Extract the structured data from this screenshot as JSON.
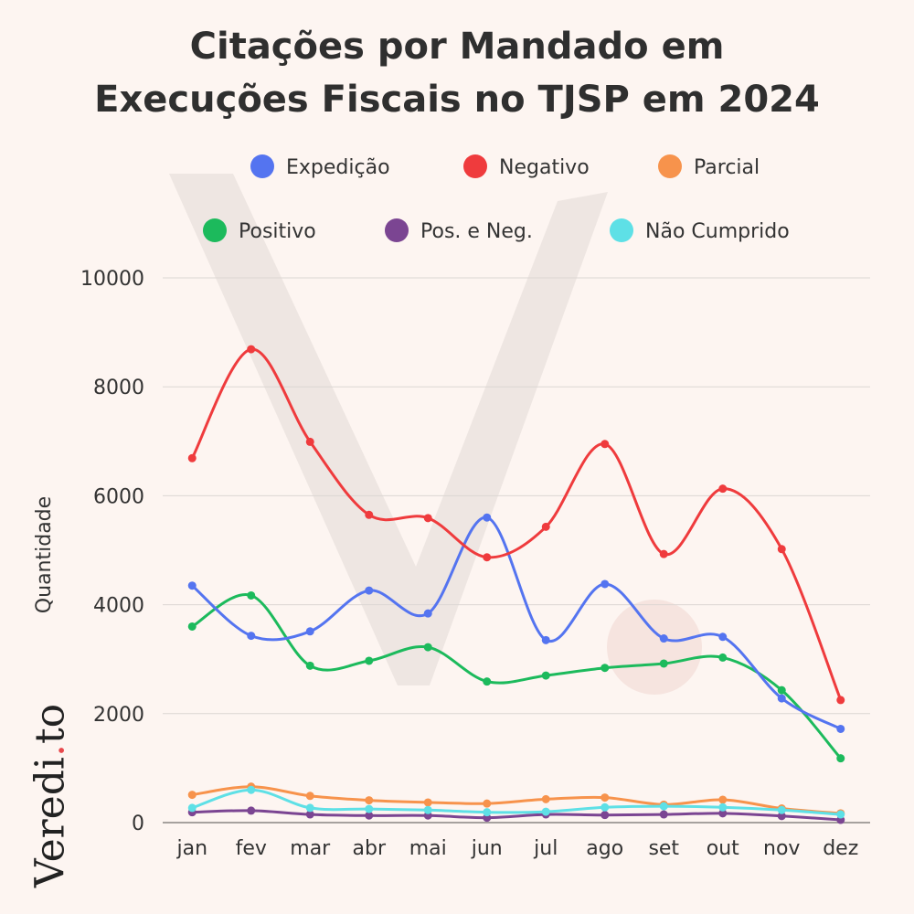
{
  "title_lines": [
    "Citações por Mandado em",
    "Execuções Fiscais no TJSP em 2024"
  ],
  "brand": {
    "name_a": "Veredi",
    "dot": ".",
    "name_b": "to"
  },
  "chart_data": {
    "type": "line",
    "title": "Citações por Mandado em Execuções Fiscais no TJSP em 2024",
    "xlabel": "",
    "ylabel": "Quantidade",
    "ylim": [
      0,
      10000
    ],
    "yticks": [
      0,
      2000,
      4000,
      6000,
      8000,
      10000
    ],
    "grid": true,
    "legend_position": "top",
    "categories": [
      "jan",
      "fev",
      "mar",
      "abr",
      "mai",
      "jun",
      "jul",
      "ago",
      "set",
      "out",
      "nov",
      "dez"
    ],
    "series": [
      {
        "name": "Expedição",
        "color": "#5474f0",
        "values": [
          4350,
          3430,
          3510,
          4260,
          3840,
          5600,
          3350,
          4380,
          3380,
          3410,
          2280,
          1720
        ]
      },
      {
        "name": "Negativo",
        "color": "#ef3b3d",
        "values": [
          6690,
          8690,
          6990,
          5650,
          5590,
          4870,
          5430,
          6950,
          4930,
          6130,
          5020,
          2250
        ]
      },
      {
        "name": "Parcial",
        "color": "#f7934c",
        "values": [
          510,
          660,
          490,
          410,
          370,
          350,
          430,
          460,
          330,
          420,
          260,
          170
        ]
      },
      {
        "name": "Positivo",
        "color": "#1cba5c",
        "values": [
          3600,
          4170,
          2880,
          2970,
          3220,
          2590,
          2700,
          2840,
          2920,
          3030,
          2430,
          1180
        ]
      },
      {
        "name": "Pos. e Neg.",
        "color": "#7b4592",
        "values": [
          190,
          220,
          150,
          130,
          130,
          90,
          150,
          140,
          150,
          170,
          120,
          50
        ]
      },
      {
        "name": "Não Cumprido",
        "color": "#5ee0e6",
        "values": [
          270,
          600,
          270,
          250,
          230,
          190,
          200,
          280,
          300,
          280,
          230,
          150
        ]
      }
    ]
  }
}
